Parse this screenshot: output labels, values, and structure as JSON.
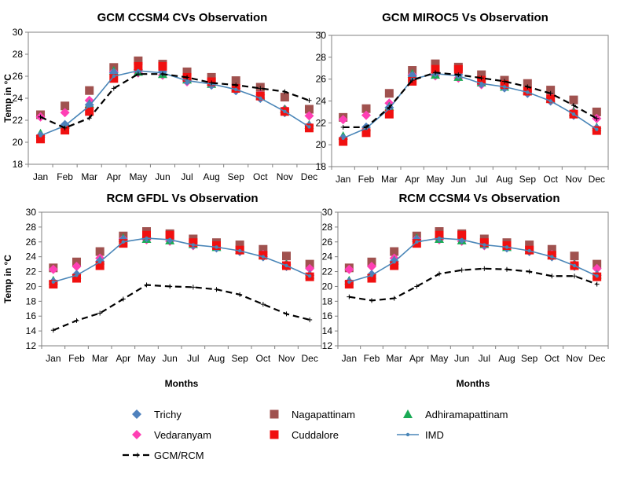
{
  "legend": {
    "items": [
      {
        "key": "trichy",
        "label": "Trichy",
        "marker": "diamond",
        "color": "#4F81BD"
      },
      {
        "key": "nagapattinam",
        "label": "Nagapattinam",
        "marker": "square",
        "color": "#A0524F"
      },
      {
        "key": "adhiramapattinam",
        "label": "Adhiramapattinam",
        "marker": "triangle",
        "color": "#1AAA55"
      },
      {
        "key": "vedaranyam",
        "label": "Vedaranyam",
        "marker": "diamond",
        "color": "#FF3FB4"
      },
      {
        "key": "cuddalore",
        "label": "Cuddalore",
        "marker": "square",
        "color": "#F01010"
      },
      {
        "key": "imd",
        "label": "IMD",
        "marker": "line-dot",
        "color": "#4A86B8"
      },
      {
        "key": "gcmrcm",
        "label": "GCM/RCM",
        "marker": "dash-plus",
        "color": "#000000"
      }
    ]
  },
  "chart_data": [
    {
      "type": "line",
      "title": "GCM CCSM4  CVs Observation",
      "ylabel": "Temp in °C",
      "xlabel": "",
      "ylim": [
        18,
        30
      ],
      "yticks": [
        18,
        20,
        22,
        24,
        26,
        28,
        30
      ],
      "categories": [
        "Jan",
        "Feb",
        "Mar",
        "Apr",
        "May",
        "Jun",
        "Jul",
        "Aug",
        "Sep",
        "Oct",
        "Nov",
        "Dec"
      ],
      "series": [
        {
          "key": "nagapattinam",
          "values": [
            22.5,
            23.3,
            24.7,
            26.8,
            27.4,
            27.1,
            26.4,
            25.9,
            25.6,
            25.0,
            24.1,
            23.0
          ]
        },
        {
          "key": "vedaranyam",
          "values": [
            22.3,
            22.7,
            23.8,
            26.4,
            26.3,
            26.1,
            25.5,
            25.3,
            24.9,
            24.3,
            23.0,
            22.4
          ]
        },
        {
          "key": "adhiramapattinam",
          "values": [
            20.8,
            21.6,
            23.5,
            26.5,
            26.4,
            26.2,
            25.7,
            25.3,
            24.9,
            24.2,
            23.0,
            21.6
          ]
        },
        {
          "key": "trichy",
          "values": [
            20.6,
            21.6,
            23.4,
            26.3,
            26.6,
            26.4,
            25.6,
            25.2,
            24.7,
            24.0,
            22.7,
            21.5
          ]
        },
        {
          "key": "cuddalore",
          "values": [
            20.3,
            21.1,
            22.8,
            25.8,
            26.9,
            26.9,
            25.9,
            25.5,
            24.9,
            24.2,
            22.8,
            21.3
          ]
        },
        {
          "key": "imd",
          "values": [
            20.6,
            21.5,
            23.3,
            26.0,
            26.5,
            26.3,
            25.6,
            25.3,
            24.8,
            24.0,
            22.8,
            21.4
          ]
        },
        {
          "key": "gcmrcm",
          "values": [
            22.3,
            21.3,
            22.2,
            24.9,
            26.2,
            26.2,
            25.9,
            25.4,
            25.2,
            24.9,
            24.6,
            23.8
          ]
        }
      ]
    },
    {
      "type": "line",
      "title": "GCM MIROC5 Vs Observation",
      "ylabel": "",
      "xlabel": "",
      "ylim": [
        18,
        30
      ],
      "yticks": [
        18,
        20,
        22,
        24,
        26,
        28,
        30
      ],
      "categories": [
        "Jan",
        "Feb",
        "Mar",
        "Apr",
        "May",
        "Jun",
        "Jul",
        "Aug",
        "Sep",
        "Oct",
        "Nov",
        "Dec"
      ],
      "series": [
        {
          "key": "nagapattinam",
          "values": [
            22.5,
            23.3,
            24.7,
            26.8,
            27.4,
            27.1,
            26.4,
            25.9,
            25.6,
            25.0,
            24.1,
            23.0
          ]
        },
        {
          "key": "vedaranyam",
          "values": [
            22.3,
            22.7,
            23.8,
            26.4,
            26.3,
            26.1,
            25.5,
            25.3,
            24.9,
            24.3,
            23.0,
            22.4
          ]
        },
        {
          "key": "adhiramapattinam",
          "values": [
            20.8,
            21.6,
            23.5,
            26.5,
            26.4,
            26.2,
            25.7,
            25.3,
            24.9,
            24.2,
            23.0,
            21.6
          ]
        },
        {
          "key": "trichy",
          "values": [
            20.6,
            21.6,
            23.4,
            26.3,
            26.6,
            26.4,
            25.6,
            25.2,
            24.7,
            24.0,
            22.7,
            21.5
          ]
        },
        {
          "key": "cuddalore",
          "values": [
            20.3,
            21.1,
            22.8,
            25.8,
            26.9,
            26.9,
            25.9,
            25.5,
            24.9,
            24.2,
            22.8,
            21.3
          ]
        },
        {
          "key": "imd",
          "values": [
            20.6,
            21.5,
            23.3,
            26.0,
            26.5,
            26.3,
            25.6,
            25.3,
            24.8,
            24.0,
            22.8,
            21.4
          ]
        },
        {
          "key": "gcmrcm",
          "values": [
            21.6,
            21.6,
            23.4,
            25.9,
            26.6,
            26.4,
            26.1,
            25.8,
            25.3,
            24.7,
            23.6,
            22.4
          ]
        }
      ]
    },
    {
      "type": "line",
      "title": "RCM  GFDL Vs Observation",
      "ylabel": "Temp in °C",
      "xlabel": "Months",
      "ylim": [
        12,
        30
      ],
      "yticks": [
        12,
        14,
        16,
        18,
        20,
        22,
        24,
        26,
        28,
        30
      ],
      "categories": [
        "Jan",
        "Feb",
        "Mar",
        "Apr",
        "May",
        "Jun",
        "Jul",
        "Aug",
        "Sep",
        "Oct",
        "Nov",
        "Dec"
      ],
      "series": [
        {
          "key": "nagapattinam",
          "values": [
            22.5,
            23.3,
            24.7,
            26.8,
            27.4,
            27.1,
            26.4,
            25.9,
            25.6,
            25.0,
            24.1,
            23.0
          ]
        },
        {
          "key": "vedaranyam",
          "values": [
            22.3,
            22.7,
            23.8,
            26.4,
            26.3,
            26.1,
            25.5,
            25.3,
            24.9,
            24.3,
            23.0,
            22.4
          ]
        },
        {
          "key": "adhiramapattinam",
          "values": [
            20.8,
            21.6,
            23.5,
            26.5,
            26.4,
            26.2,
            25.7,
            25.3,
            24.9,
            24.2,
            23.0,
            21.6
          ]
        },
        {
          "key": "trichy",
          "values": [
            20.6,
            21.6,
            23.4,
            26.3,
            26.6,
            26.4,
            25.6,
            25.2,
            24.7,
            24.0,
            22.7,
            21.5
          ]
        },
        {
          "key": "cuddalore",
          "values": [
            20.3,
            21.1,
            22.8,
            25.8,
            26.9,
            26.9,
            25.9,
            25.5,
            24.9,
            24.2,
            22.8,
            21.3
          ]
        },
        {
          "key": "imd",
          "values": [
            20.6,
            21.5,
            23.3,
            26.0,
            26.5,
            26.3,
            25.6,
            25.3,
            24.8,
            24.0,
            22.8,
            21.4
          ]
        },
        {
          "key": "gcmrcm",
          "values": [
            14.1,
            15.4,
            16.4,
            18.3,
            20.2,
            20.0,
            19.9,
            19.6,
            18.9,
            17.6,
            16.3,
            15.5
          ]
        }
      ]
    },
    {
      "type": "line",
      "title": "RCM  CCSM4 Vs Observation",
      "ylabel": "",
      "xlabel": "Months",
      "ylim": [
        12,
        30
      ],
      "yticks": [
        12,
        14,
        16,
        18,
        20,
        22,
        24,
        26,
        28,
        30
      ],
      "categories": [
        "Jan",
        "Feb",
        "Mar",
        "Apr",
        "May",
        "Jun",
        "Jul",
        "Aug",
        "Sep",
        "Oct",
        "Nov",
        "Dec"
      ],
      "series": [
        {
          "key": "nagapattinam",
          "values": [
            22.5,
            23.3,
            24.7,
            26.8,
            27.4,
            27.1,
            26.4,
            25.9,
            25.6,
            25.0,
            24.1,
            23.0
          ]
        },
        {
          "key": "vedaranyam",
          "values": [
            22.3,
            22.7,
            23.8,
            26.4,
            26.3,
            26.1,
            25.5,
            25.3,
            24.9,
            24.3,
            23.0,
            22.4
          ]
        },
        {
          "key": "adhiramapattinam",
          "values": [
            20.8,
            21.6,
            23.5,
            26.5,
            26.4,
            26.2,
            25.7,
            25.3,
            24.9,
            24.2,
            23.0,
            21.6
          ]
        },
        {
          "key": "trichy",
          "values": [
            20.6,
            21.6,
            23.4,
            26.3,
            26.6,
            26.4,
            25.6,
            25.2,
            24.7,
            24.0,
            22.7,
            21.5
          ]
        },
        {
          "key": "cuddalore",
          "values": [
            20.3,
            21.1,
            22.8,
            25.8,
            26.9,
            26.9,
            25.9,
            25.5,
            24.9,
            24.2,
            22.8,
            21.3
          ]
        },
        {
          "key": "imd",
          "values": [
            20.6,
            21.5,
            23.3,
            26.0,
            26.5,
            26.3,
            25.6,
            25.3,
            24.8,
            24.0,
            22.8,
            21.4
          ]
        },
        {
          "key": "gcmrcm",
          "values": [
            18.6,
            18.1,
            18.4,
            20.0,
            21.7,
            22.2,
            22.4,
            22.3,
            22.0,
            21.4,
            21.4,
            20.3
          ]
        }
      ]
    }
  ]
}
